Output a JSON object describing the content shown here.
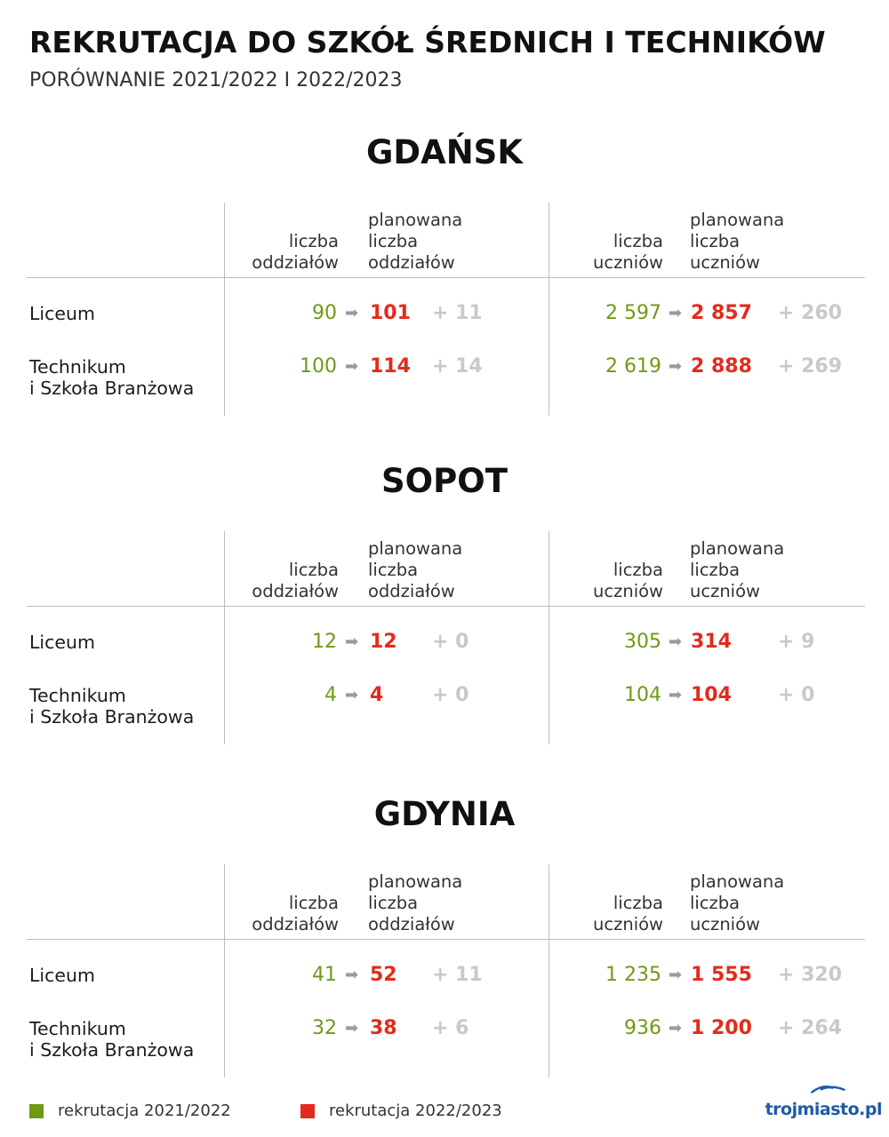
{
  "header": {
    "title": "REKRUTACJA DO SZKÓŁ ŚREDNICH I TECHNIKÓW",
    "subtitle": "PORÓWNANIE 2021/2022 I 2022/2023"
  },
  "columns": {
    "classes_current_l1": "liczba",
    "classes_current_l2": "oddziałów",
    "classes_planned_l1": "planowana",
    "classes_planned_l2": "liczba",
    "classes_planned_l3": "oddziałów",
    "students_current_l1": "liczba",
    "students_current_l2": "uczniów",
    "students_planned_l1": "planowana",
    "students_planned_l2": "liczba",
    "students_planned_l3": "uczniów"
  },
  "row_labels": {
    "liceum": "Liceum",
    "technikum_l1": "Technikum",
    "technikum_l2": "i Szkoła Branżowa"
  },
  "arrow_symbol": "➡",
  "sections": [
    {
      "city": "GDAŃSK",
      "rows": [
        {
          "classes_old": "90",
          "classes_new": "101",
          "classes_delta": "+ 11",
          "students_old": "2 597",
          "students_new": "2 857",
          "students_delta": "+ 260"
        },
        {
          "classes_old": "100",
          "classes_new": "114",
          "classes_delta": "+ 14",
          "students_old": "2 619",
          "students_new": "2 888",
          "students_delta": "+ 269"
        }
      ]
    },
    {
      "city": "SOPOT",
      "rows": [
        {
          "classes_old": "12",
          "classes_new": "12",
          "classes_delta": "+ 0",
          "students_old": "305",
          "students_new": "314",
          "students_delta": "+ 9"
        },
        {
          "classes_old": "4",
          "classes_new": "4",
          "classes_delta": "+ 0",
          "students_old": "104",
          "students_new": "104",
          "students_delta": "+ 0"
        }
      ]
    },
    {
      "city": "GDYNIA",
      "rows": [
        {
          "classes_old": "41",
          "classes_new": "52",
          "classes_delta": "+ 11",
          "students_old": "1 235",
          "students_new": "1 555",
          "students_delta": "+ 320"
        },
        {
          "classes_old": "32",
          "classes_new": "38",
          "classes_delta": "+ 6",
          "students_old": "936",
          "students_new": "1 200",
          "students_delta": "+ 264"
        }
      ]
    }
  ],
  "legend": {
    "old_label": "rekrutacja 2021/2022",
    "old_color": "#6e9a16",
    "new_label": "rekrutacja 2022/2023",
    "new_color": "#e52a1b"
  },
  "logo": {
    "text": "trojmiasto.pl"
  }
}
